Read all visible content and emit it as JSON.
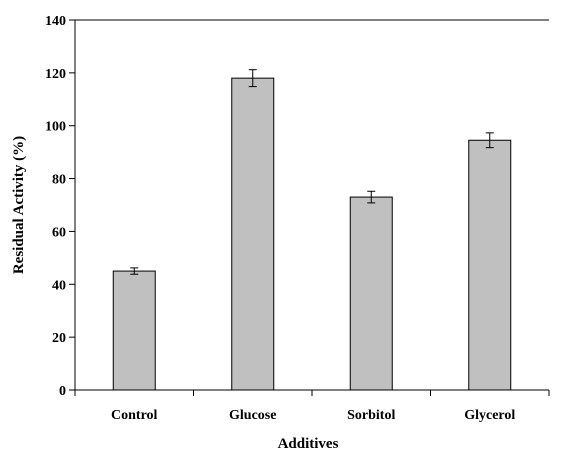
{
  "chart_data": {
    "type": "bar",
    "title": "",
    "xlabel": "Additives",
    "ylabel": "Residual Activity (%)",
    "categories": [
      "Control",
      "Glucose",
      "Sorbitol",
      "Glycerol"
    ],
    "values": [
      45,
      118,
      73,
      94.5
    ],
    "errors": [
      1.2,
      3.2,
      2.2,
      2.8
    ],
    "ylim": [
      0,
      140
    ],
    "yticks": [
      0,
      20,
      40,
      60,
      80,
      100,
      120,
      140
    ],
    "ytick_labels": [
      "0",
      "20",
      "40",
      "60",
      "80",
      "100",
      "120",
      "140"
    ],
    "grid": false,
    "legend": "none",
    "bar_color": "#c0c0c0",
    "edge_color": "#000000"
  }
}
